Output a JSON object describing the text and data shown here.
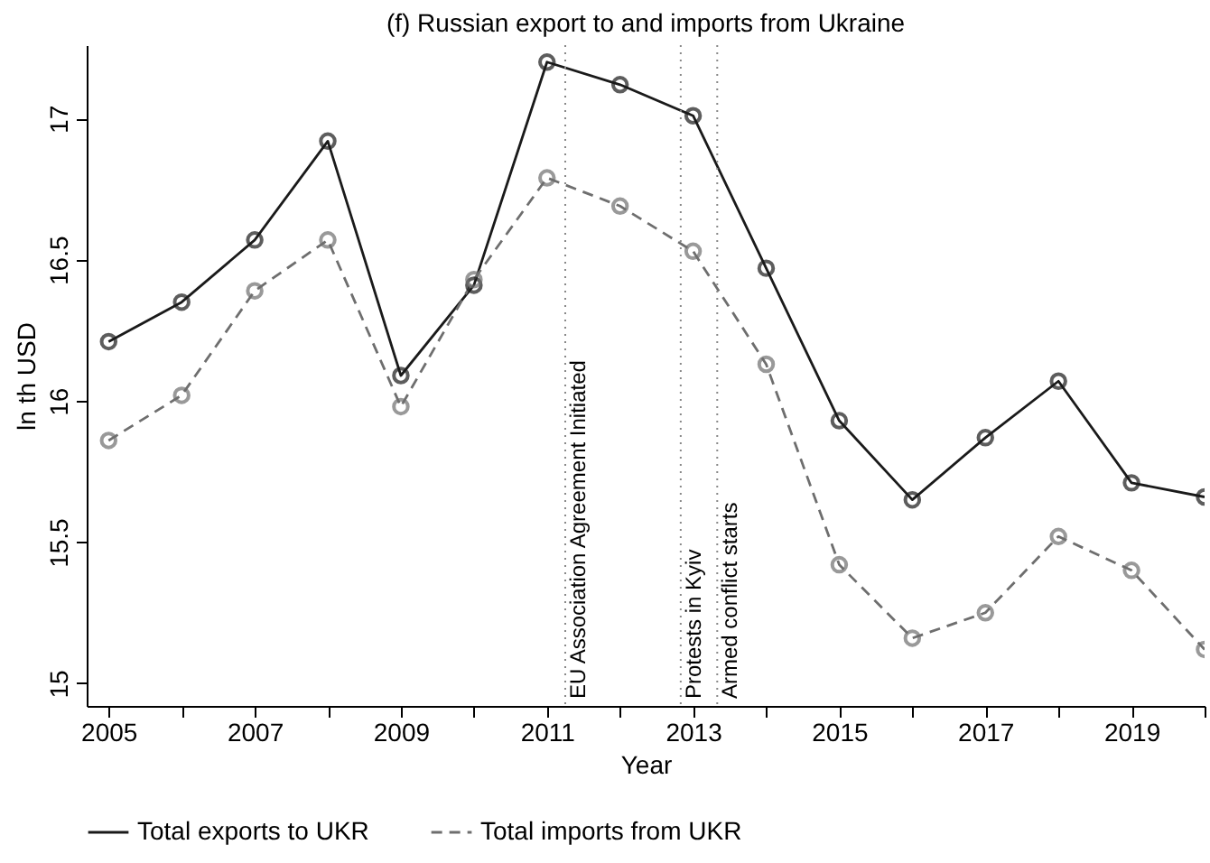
{
  "chart_data": {
    "type": "line",
    "title": "(f) Russian export to and imports from Ukraine",
    "xlabel": "Year",
    "ylabel": "ln th USD",
    "x": [
      2005,
      2006,
      2007,
      2008,
      2009,
      2010,
      2011,
      2012,
      2013,
      2014,
      2015,
      2016,
      2017,
      2018,
      2019,
      2020
    ],
    "series": [
      {
        "name": "Total exports to UKR",
        "color": "#1a1a1a",
        "line_style": "solid",
        "values": [
          16.21,
          16.35,
          16.57,
          16.92,
          16.09,
          16.41,
          17.2,
          17.12,
          17.01,
          16.47,
          15.93,
          15.65,
          15.87,
          16.07,
          15.71,
          15.66
        ]
      },
      {
        "name": "Total imports from UKR",
        "color": "#6e6e6e",
        "line_style": "dashed",
        "values": [
          15.86,
          16.02,
          16.39,
          16.57,
          15.98,
          16.43,
          16.79,
          16.69,
          16.53,
          16.13,
          15.42,
          15.16,
          15.25,
          15.52,
          15.4,
          15.12
        ]
      }
    ],
    "xlim": [
      2004.7,
      2020
    ],
    "ylim": [
      14.92,
      17.26
    ],
    "xticks": [
      2005,
      {
        "value": 2006,
        "label": null
      },
      2007,
      {
        "value": 2008,
        "label": null
      },
      2009,
      {
        "value": 2010,
        "label": null
      },
      2011,
      {
        "value": 2012,
        "label": null
      },
      2013,
      {
        "value": 2014,
        "label": null
      },
      2015,
      {
        "value": 2016,
        "label": null
      },
      2017,
      {
        "value": 2018,
        "label": null
      },
      2019,
      {
        "value": 2020,
        "label": null
      }
    ],
    "yticks": [
      15,
      15.5,
      16,
      16.5,
      17
    ],
    "ref_lines": [
      {
        "axis": "x",
        "value": 2011.25,
        "label": "EU Association Agreement Initiated",
        "color": "#888888",
        "line_style": "dotted"
      },
      {
        "axis": "x",
        "value": 2012.83,
        "label": "Protests in Kyiv",
        "color": "#888888",
        "line_style": "dotted"
      },
      {
        "axis": "x",
        "value": 2013.33,
        "label": "Armed conflict starts",
        "color": "#888888",
        "line_style": "dotted"
      }
    ],
    "marker": "circle",
    "grid": false,
    "legend": "bottom"
  }
}
